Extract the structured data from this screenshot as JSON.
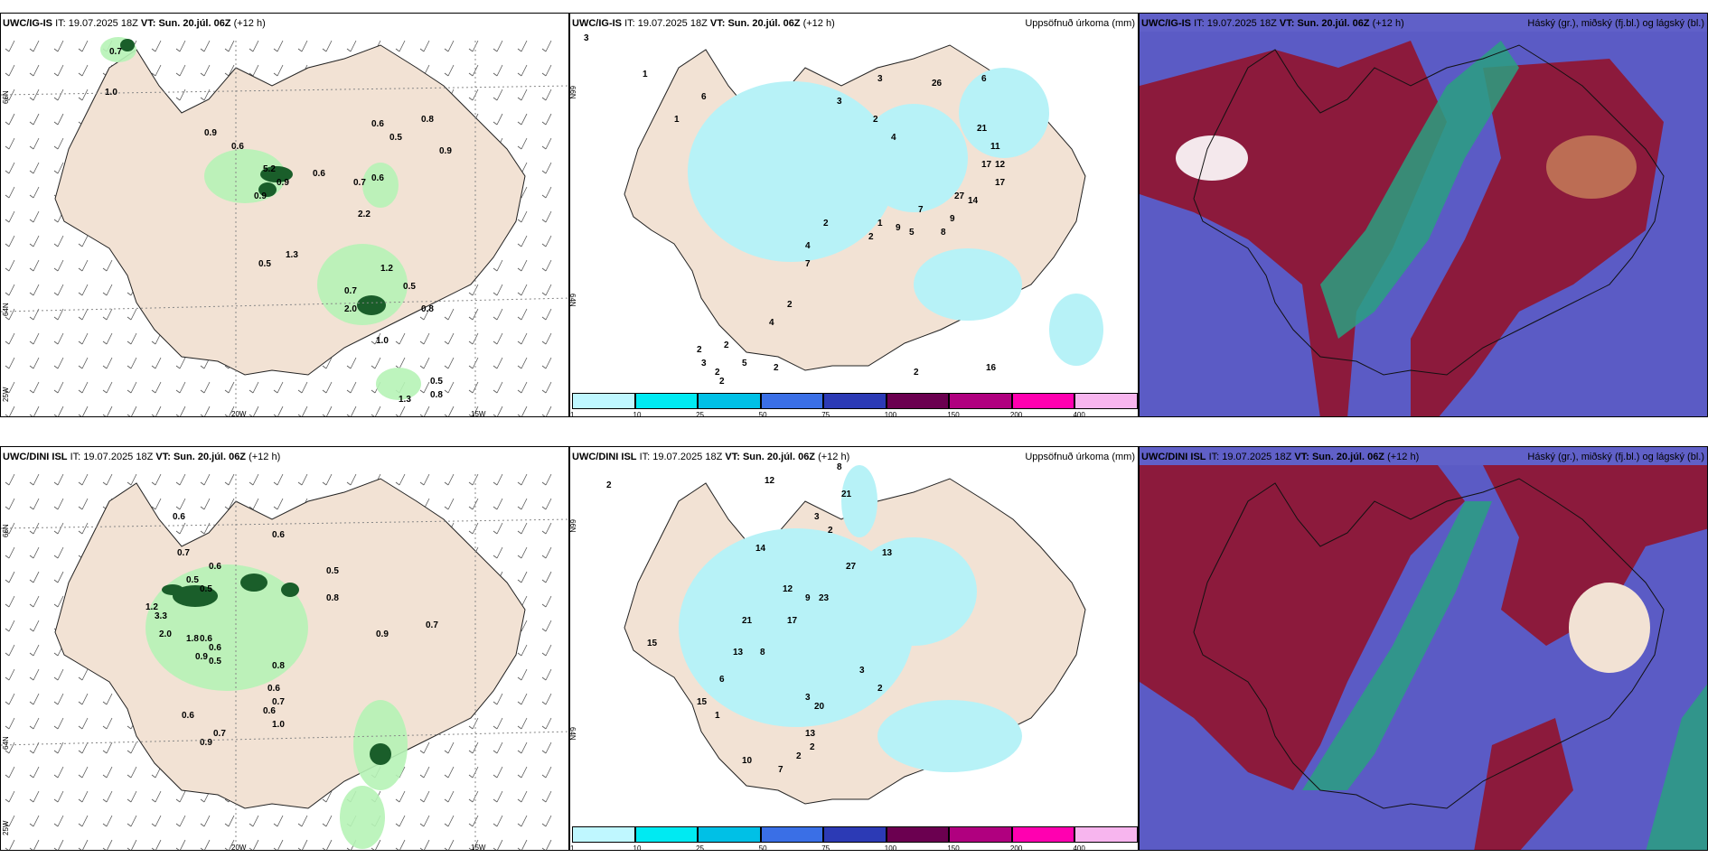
{
  "panels": {
    "p1": {
      "model": "UWC/IG-IS",
      "it_label": "IT:",
      "it": "19.07.2025 18Z",
      "vt_label": "VT:",
      "vt": "Sun. 20.júl. 06Z",
      "lead": "(+12 h)"
    },
    "p2": {
      "model": "UWC/IG-IS",
      "it_label": "IT:",
      "it": "19.07.2025 18Z",
      "vt_label": "VT:",
      "vt": "Sun. 20.júl. 06Z",
      "lead": "(+12 h)",
      "right": "Uppsöfnuð úrkoma (mm)"
    },
    "p3": {
      "model": "UWC/IG-IS",
      "it_label": "IT:",
      "it": "19.07.2025 18Z",
      "vt_label": "VT:",
      "vt": "Sun. 20.júl. 06Z",
      "lead": "(+12 h)",
      "right": "Háský (gr.), miðský (fj.bl.) og lágský (bl.)"
    },
    "p4": {
      "model": "UWC/DINI ISL",
      "it_label": "IT:",
      "it": "19.07.2025 18Z",
      "vt_label": "VT:",
      "vt": "Sun. 20.júl. 06Z",
      "lead": "(+12 h)"
    },
    "p5": {
      "model": "UWC/DINI ISL",
      "it_label": "IT:",
      "it": "19.07.2025 18Z",
      "vt_label": "VT:",
      "vt": "Sun. 20.júl. 06Z",
      "lead": "(+12 h)",
      "right": "Uppsöfnuð úrkoma (mm)"
    },
    "p6": {
      "model": "UWC/DINI ISL",
      "it_label": "IT:",
      "it": "19.07.2025 18Z",
      "vt_label": "VT:",
      "vt": "Sun. 20.júl. 06Z",
      "lead": "(+12 h)",
      "right": "Háský (gr.), miðský (fj.bl.) og lágský (bl.)"
    }
  },
  "axis": {
    "lat66": "66N",
    "lat64": "64N",
    "lon20": "20W",
    "lon15": "15W",
    "lon25": "25W"
  },
  "colorbar": {
    "ticks": [
      "1",
      "10",
      "25",
      "50",
      "75",
      "100",
      "150",
      "200",
      "400"
    ],
    "colors": [
      "#bff7ff",
      "#00eaf2",
      "#00c0e6",
      "#3a6fe6",
      "#2c3ab5",
      "#6b0050",
      "#b0007f",
      "#ff00b0",
      "#f7b5ee"
    ]
  },
  "colors": {
    "land": "#f2e2d4",
    "precip": "#b7f2f7",
    "green_light": "#b6f3b6",
    "green_dark": "#1a5e2a",
    "cloud_blue": "#6060c8",
    "cloud_maroon": "#8c1a3c",
    "cloud_teal": "#2aa080"
  },
  "values": {
    "p1": [
      "0.7",
      "1.0",
      "0.9",
      "0.6",
      "0.6",
      "0.9",
      "5.2",
      "0.9",
      "0.6",
      "0.5",
      "0.9",
      "0.8",
      "0.6",
      "0.7",
      "2.2",
      "1.3",
      "0.5",
      "1.2",
      "0.5",
      "0.7",
      "2.0",
      "0.8",
      "1.0",
      "0.5",
      "0.8",
      "1.3"
    ],
    "p2": [
      "3",
      "1",
      "1",
      "6",
      "3",
      "3",
      "2",
      "4",
      "26",
      "6",
      "21",
      "11",
      "12",
      "17",
      "17",
      "27",
      "14",
      "9",
      "8",
      "7",
      "5",
      "9",
      "2",
      "1",
      "2",
      "4",
      "7",
      "2",
      "4",
      "2",
      "5",
      "2",
      "2",
      "3",
      "2",
      "2",
      "16",
      "2"
    ],
    "p4": [
      "0.6",
      "0.6",
      "0.7",
      "0.6",
      "0.5",
      "0.5",
      "1.2",
      "3.3",
      "2.0",
      "1.8",
      "0.6",
      "0.6",
      "0.9",
      "0.5",
      "0.8",
      "0.6",
      "0.5",
      "0.8",
      "0.7",
      "0.6",
      "1.0",
      "0.6",
      "0.7",
      "0.9",
      "0.7",
      "0.9"
    ],
    "p5": [
      "2",
      "12",
      "8",
      "21",
      "3",
      "2",
      "13",
      "27",
      "23",
      "21",
      "15",
      "14",
      "12",
      "9",
      "17",
      "13",
      "8",
      "6",
      "15",
      "20",
      "13",
      "10",
      "7",
      "1",
      "3",
      "3",
      "2",
      "2",
      "2"
    ]
  }
}
